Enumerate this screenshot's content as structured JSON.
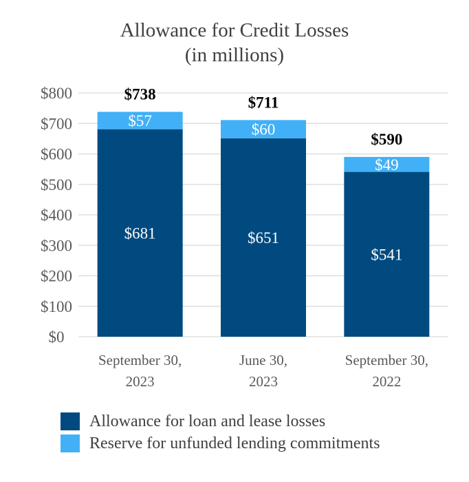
{
  "chart_data": {
    "type": "bar",
    "stacked": true,
    "title": "Allowance for Credit Losses",
    "subtitle": "(in millions)",
    "categories": [
      [
        "September 30,",
        "2023"
      ],
      [
        "June 30,",
        "2023"
      ],
      [
        "September 30,",
        "2022"
      ]
    ],
    "series": [
      {
        "name": "Allowance for loan and lease losses",
        "values": [
          681,
          651,
          541
        ],
        "labels": [
          "$681",
          "$651",
          "$541"
        ],
        "color": "#004a7f"
      },
      {
        "name": "Reserve for unfunded lending commitments",
        "values": [
          57,
          60,
          49
        ],
        "labels": [
          "$57",
          "$60",
          "$49"
        ],
        "color": "#41b0f7"
      }
    ],
    "totals": [
      738,
      711,
      590
    ],
    "total_labels": [
      "$738",
      "$711",
      "$590"
    ],
    "y_ticks": [
      "$0",
      "$100",
      "$200",
      "$300",
      "$400",
      "$500",
      "$600",
      "$700",
      "$800"
    ],
    "ylim": [
      0,
      800
    ],
    "grid": true,
    "legend_position": "bottom"
  }
}
